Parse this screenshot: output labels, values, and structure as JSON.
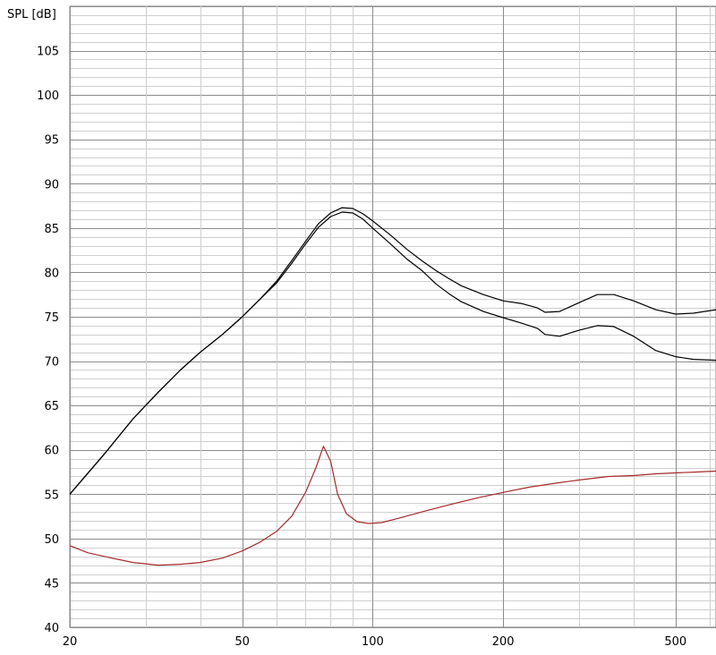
{
  "chart_data": {
    "type": "line",
    "title": "",
    "ylabel": "SPL [dB]",
    "xlabel": "",
    "xscale": "log",
    "xlim": [
      20,
      620
    ],
    "ylim": [
      40,
      110
    ],
    "grid": true,
    "x_ticks": [
      20,
      50,
      100,
      200,
      500
    ],
    "y_ticks": [
      40,
      45,
      50,
      55,
      60,
      65,
      70,
      75,
      80,
      85,
      90,
      95,
      100,
      105
    ],
    "series": [
      {
        "color": "#000000",
        "points": [
          [
            20,
            55
          ],
          [
            24,
            59.5
          ],
          [
            28,
            63.5
          ],
          [
            32,
            66.5
          ],
          [
            36,
            69
          ],
          [
            40,
            71
          ],
          [
            45,
            73
          ],
          [
            50,
            75
          ],
          [
            55,
            77
          ],
          [
            60,
            79
          ],
          [
            65,
            81.3
          ],
          [
            70,
            83.5
          ],
          [
            75,
            85.5
          ],
          [
            80,
            86.7
          ],
          [
            85,
            87.3
          ],
          [
            90,
            87.2
          ],
          [
            95,
            86.6
          ],
          [
            100,
            85.8
          ],
          [
            110,
            84.2
          ],
          [
            120,
            82.6
          ],
          [
            130,
            81.3
          ],
          [
            140,
            80.2
          ],
          [
            150,
            79.3
          ],
          [
            160,
            78.5
          ],
          [
            180,
            77.5
          ],
          [
            200,
            76.8
          ],
          [
            220,
            76.5
          ],
          [
            240,
            76
          ],
          [
            250,
            75.5
          ],
          [
            270,
            75.6
          ],
          [
            300,
            76.6
          ],
          [
            330,
            77.5
          ],
          [
            360,
            77.5
          ],
          [
            400,
            76.8
          ],
          [
            450,
            75.8
          ],
          [
            500,
            75.3
          ],
          [
            550,
            75.4
          ],
          [
            620,
            75.8
          ]
        ]
      },
      {
        "color": "#000000",
        "points": [
          [
            20,
            55
          ],
          [
            24,
            59.5
          ],
          [
            28,
            63.5
          ],
          [
            32,
            66.5
          ],
          [
            36,
            69
          ],
          [
            40,
            71
          ],
          [
            45,
            73
          ],
          [
            50,
            75
          ],
          [
            55,
            77
          ],
          [
            60,
            78.8
          ],
          [
            65,
            81
          ],
          [
            70,
            83.2
          ],
          [
            75,
            85.1
          ],
          [
            80,
            86.3
          ],
          [
            85,
            86.8
          ],
          [
            90,
            86.7
          ],
          [
            95,
            86
          ],
          [
            100,
            85
          ],
          [
            110,
            83.2
          ],
          [
            120,
            81.5
          ],
          [
            130,
            80.2
          ],
          [
            140,
            78.7
          ],
          [
            150,
            77.6
          ],
          [
            160,
            76.7
          ],
          [
            180,
            75.6
          ],
          [
            200,
            74.9
          ],
          [
            220,
            74.3
          ],
          [
            240,
            73.7
          ],
          [
            250,
            73
          ],
          [
            270,
            72.8
          ],
          [
            300,
            73.5
          ],
          [
            330,
            74
          ],
          [
            360,
            73.9
          ],
          [
            400,
            72.8
          ],
          [
            450,
            71.2
          ],
          [
            500,
            70.5
          ],
          [
            550,
            70.2
          ],
          [
            620,
            70.1
          ]
        ]
      },
      {
        "color": "#a52a2a",
        "points": [
          [
            20,
            49.2
          ],
          [
            22,
            48.4
          ],
          [
            25,
            47.8
          ],
          [
            28,
            47.3
          ],
          [
            32,
            47
          ],
          [
            36,
            47.1
          ],
          [
            40,
            47.3
          ],
          [
            45,
            47.8
          ],
          [
            50,
            48.6
          ],
          [
            55,
            49.6
          ],
          [
            60,
            50.8
          ],
          [
            65,
            52.5
          ],
          [
            70,
            55.2
          ],
          [
            74,
            58
          ],
          [
            77,
            60.4
          ],
          [
            80,
            58.7
          ],
          [
            83,
            55
          ],
          [
            87,
            52.8
          ],
          [
            92,
            51.9
          ],
          [
            98,
            51.7
          ],
          [
            105,
            51.8
          ],
          [
            115,
            52.3
          ],
          [
            130,
            53
          ],
          [
            150,
            53.8
          ],
          [
            175,
            54.6
          ],
          [
            200,
            55.2
          ],
          [
            230,
            55.8
          ],
          [
            270,
            56.3
          ],
          [
            300,
            56.6
          ],
          [
            350,
            57
          ],
          [
            400,
            57.1
          ],
          [
            450,
            57.3
          ],
          [
            500,
            57.4
          ],
          [
            560,
            57.5
          ],
          [
            620,
            57.6
          ]
        ]
      }
    ]
  }
}
